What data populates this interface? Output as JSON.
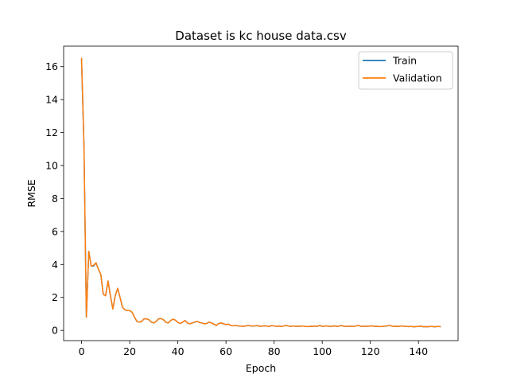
{
  "chart_data": {
    "type": "line",
    "title": "Dataset is kc house data.csv",
    "xlabel": "Epoch",
    "ylabel": "RMSE",
    "xlim": [
      -7.45,
      156.45
    ],
    "ylim": [
      -0.62,
      17.24
    ],
    "xticks": [
      0,
      20,
      40,
      60,
      80,
      100,
      120,
      140
    ],
    "yticks": [
      0,
      2,
      4,
      6,
      8,
      10,
      12,
      14,
      16
    ],
    "grid": false,
    "legend": "top-right",
    "colors": {
      "Train": "#1f77b4",
      "Validation": "#ff7f0e"
    },
    "series": [
      {
        "name": "Train",
        "x": [
          0,
          1,
          2,
          3,
          4,
          5,
          6,
          7,
          8,
          9,
          10,
          11,
          12,
          13,
          14,
          15,
          16,
          17,
          18,
          19,
          20,
          21,
          22,
          23,
          24,
          25,
          26,
          27,
          28,
          29,
          30,
          31,
          32,
          33,
          34,
          35,
          36,
          37,
          38,
          39,
          40,
          41,
          42,
          43,
          44,
          45,
          46,
          47,
          48,
          49,
          50,
          51,
          52,
          53,
          54,
          55,
          56,
          57,
          58,
          59,
          60,
          61,
          62,
          63,
          64,
          65,
          66,
          67,
          68,
          69,
          70,
          71,
          72,
          73,
          74,
          75,
          76,
          77,
          78,
          79,
          80,
          81,
          82,
          83,
          84,
          85,
          86,
          87,
          88,
          89,
          90,
          91,
          92,
          93,
          94,
          95,
          96,
          97,
          98,
          99,
          100,
          101,
          102,
          103,
          104,
          105,
          106,
          107,
          108,
          109,
          110,
          111,
          112,
          113,
          114,
          115,
          116,
          117,
          118,
          119,
          120,
          121,
          122,
          123,
          124,
          125,
          126,
          127,
          128,
          129,
          130,
          131,
          132,
          133,
          134,
          135,
          136,
          137,
          138,
          139,
          140,
          141,
          142,
          143,
          144,
          145,
          146,
          147,
          148,
          149
        ],
        "y": [
          16.4,
          11.2,
          0.8,
          4.8,
          3.9,
          3.9,
          4.1,
          3.7,
          3.4,
          2.2,
          2.1,
          3.0,
          2.1,
          1.3,
          2.1,
          2.55,
          2.0,
          1.4,
          1.25,
          1.2,
          1.2,
          1.1,
          0.8,
          0.55,
          0.5,
          0.55,
          0.7,
          0.7,
          0.65,
          0.5,
          0.45,
          0.55,
          0.7,
          0.72,
          0.65,
          0.5,
          0.45,
          0.6,
          0.68,
          0.62,
          0.48,
          0.42,
          0.5,
          0.6,
          0.45,
          0.4,
          0.45,
          0.5,
          0.55,
          0.48,
          0.45,
          0.4,
          0.42,
          0.5,
          0.45,
          0.38,
          0.3,
          0.42,
          0.45,
          0.4,
          0.35,
          0.38,
          0.3,
          0.28,
          0.3,
          0.27,
          0.26,
          0.25,
          0.26,
          0.3,
          0.28,
          0.26,
          0.27,
          0.3,
          0.25,
          0.26,
          0.28,
          0.26,
          0.24,
          0.3,
          0.27,
          0.25,
          0.26,
          0.24,
          0.27,
          0.3,
          0.26,
          0.25,
          0.27,
          0.24,
          0.26,
          0.25,
          0.27,
          0.24,
          0.23,
          0.25,
          0.24,
          0.26,
          0.25,
          0.3,
          0.24,
          0.26,
          0.27,
          0.25,
          0.24,
          0.28,
          0.24,
          0.26,
          0.3,
          0.25,
          0.24,
          0.26,
          0.25,
          0.24,
          0.27,
          0.3,
          0.25,
          0.24,
          0.26,
          0.25,
          0.27,
          0.26,
          0.24,
          0.25,
          0.23,
          0.24,
          0.26,
          0.27,
          0.3,
          0.26,
          0.24,
          0.25,
          0.24,
          0.27,
          0.25,
          0.24,
          0.23,
          0.24,
          0.22,
          0.23,
          0.24,
          0.26,
          0.22,
          0.23,
          0.22,
          0.24,
          0.23,
          0.22,
          0.24,
          0.23
        ]
      },
      {
        "name": "Validation",
        "x": [
          0,
          1,
          2,
          3,
          4,
          5,
          6,
          7,
          8,
          9,
          10,
          11,
          12,
          13,
          14,
          15,
          16,
          17,
          18,
          19,
          20,
          21,
          22,
          23,
          24,
          25,
          26,
          27,
          28,
          29,
          30,
          31,
          32,
          33,
          34,
          35,
          36,
          37,
          38,
          39,
          40,
          41,
          42,
          43,
          44,
          45,
          46,
          47,
          48,
          49,
          50,
          51,
          52,
          53,
          54,
          55,
          56,
          57,
          58,
          59,
          60,
          61,
          62,
          63,
          64,
          65,
          66,
          67,
          68,
          69,
          70,
          71,
          72,
          73,
          74,
          75,
          76,
          77,
          78,
          79,
          80,
          81,
          82,
          83,
          84,
          85,
          86,
          87,
          88,
          89,
          90,
          91,
          92,
          93,
          94,
          95,
          96,
          97,
          98,
          99,
          100,
          101,
          102,
          103,
          104,
          105,
          106,
          107,
          108,
          109,
          110,
          111,
          112,
          113,
          114,
          115,
          116,
          117,
          118,
          119,
          120,
          121,
          122,
          123,
          124,
          125,
          126,
          127,
          128,
          129,
          130,
          131,
          132,
          133,
          134,
          135,
          136,
          137,
          138,
          139,
          140,
          141,
          142,
          143,
          144,
          145,
          146,
          147,
          148,
          149
        ],
        "y": [
          16.5,
          11.3,
          0.8,
          4.8,
          3.9,
          3.95,
          4.1,
          3.7,
          3.4,
          2.2,
          2.1,
          3.0,
          2.1,
          1.3,
          2.1,
          2.55,
          2.0,
          1.4,
          1.25,
          1.2,
          1.2,
          1.1,
          0.8,
          0.55,
          0.5,
          0.55,
          0.7,
          0.7,
          0.65,
          0.5,
          0.45,
          0.55,
          0.7,
          0.72,
          0.65,
          0.5,
          0.45,
          0.6,
          0.68,
          0.62,
          0.48,
          0.42,
          0.5,
          0.6,
          0.45,
          0.4,
          0.45,
          0.5,
          0.55,
          0.48,
          0.45,
          0.4,
          0.42,
          0.5,
          0.45,
          0.38,
          0.3,
          0.42,
          0.45,
          0.4,
          0.35,
          0.38,
          0.3,
          0.28,
          0.3,
          0.27,
          0.26,
          0.25,
          0.26,
          0.3,
          0.28,
          0.26,
          0.27,
          0.3,
          0.25,
          0.26,
          0.28,
          0.26,
          0.24,
          0.3,
          0.27,
          0.25,
          0.26,
          0.24,
          0.27,
          0.3,
          0.26,
          0.25,
          0.27,
          0.24,
          0.26,
          0.25,
          0.27,
          0.24,
          0.23,
          0.25,
          0.24,
          0.26,
          0.25,
          0.3,
          0.24,
          0.26,
          0.27,
          0.25,
          0.24,
          0.28,
          0.24,
          0.26,
          0.3,
          0.25,
          0.24,
          0.26,
          0.25,
          0.24,
          0.27,
          0.3,
          0.25,
          0.24,
          0.26,
          0.25,
          0.27,
          0.26,
          0.24,
          0.25,
          0.23,
          0.24,
          0.26,
          0.27,
          0.3,
          0.26,
          0.24,
          0.25,
          0.24,
          0.27,
          0.25,
          0.24,
          0.23,
          0.24,
          0.22,
          0.23,
          0.24,
          0.26,
          0.22,
          0.23,
          0.22,
          0.24,
          0.23,
          0.22,
          0.24,
          0.23
        ]
      }
    ]
  }
}
